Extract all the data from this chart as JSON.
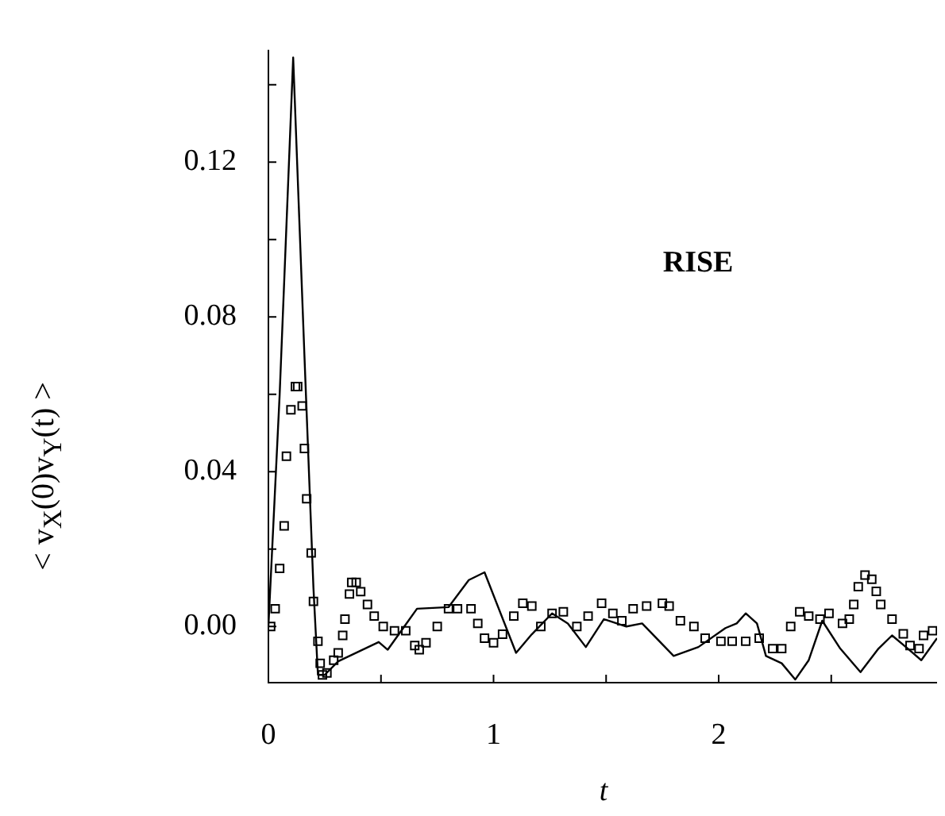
{
  "chart_data": {
    "type": "line",
    "xlabel": "t",
    "ylabel": "< v$_{X}$(0)v$_{Y}$(t) >",
    "annotations": [
      "RISE"
    ],
    "xlim": [
      0,
      2.97
    ],
    "ylim": [
      -0.0145,
      0.149
    ],
    "xticks": [
      0,
      {
        "value": 0.5,
        "label": null
      },
      1,
      {
        "value": 1.5,
        "label": null
      },
      2,
      {
        "value": 2.5,
        "label": null
      }
    ],
    "yticks": [
      {
        "value": 0,
        "label": "0.00"
      },
      {
        "value": 0.02,
        "label": null
      },
      {
        "value": 0.04,
        "label": "0.04"
      },
      {
        "value": 0.06,
        "label": null
      },
      {
        "value": 0.08,
        "label": "0.08"
      },
      {
        "value": 0.1,
        "label": null
      },
      {
        "value": 0.12,
        "label": "0.12"
      },
      {
        "value": 0.14,
        "label": null
      }
    ],
    "series": [
      {
        "type": "line",
        "color": "#000000",
        "marker": "none",
        "line_style": "solid",
        "x": [
          0,
          0.05,
          0.11,
          0.16,
          0.2,
          0.22,
          0.25,
          0.31,
          0.49,
          0.53,
          0.66,
          0.8,
          0.89,
          0.96,
          1.1,
          1.17,
          1.26,
          1.33,
          1.41,
          1.49,
          1.59,
          1.66,
          1.8,
          1.91,
          2.03,
          2.08,
          2.12,
          2.17,
          2.21,
          2.28,
          2.34,
          2.4,
          2.46,
          2.54,
          2.63,
          2.71,
          2.77,
          2.84,
          2.9,
          2.97
        ],
        "values": [
          0,
          0.06,
          0.147,
          0.07,
          0.01,
          -0.0125,
          -0.0125,
          -0.009,
          -0.004,
          -0.006,
          0.0046,
          0.005,
          0.012,
          0.014,
          -0.0068,
          -0.002,
          0.0034,
          0.0008,
          -0.0053,
          0.0019,
          0,
          0.0008,
          -0.0076,
          -0.0053,
          -0.0004,
          0.0008,
          0.0034,
          0.0008,
          -0.0076,
          -0.0095,
          -0.0137,
          -0.0087,
          0.0015,
          -0.0057,
          -0.0118,
          -0.0057,
          -0.0023,
          -0.0057,
          -0.0087,
          -0.003
        ]
      },
      {
        "type": "scatter",
        "color": "#000000",
        "marker": "square",
        "x": [
          0.01,
          0.03,
          0.05,
          0.07,
          0.08,
          0.1,
          0.12,
          0.13,
          0.15,
          0.16,
          0.17,
          0.19,
          0.2,
          0.22,
          0.23,
          0.24,
          0.26,
          0.29,
          0.31,
          0.33,
          0.34,
          0.36,
          0.37,
          0.39,
          0.41,
          0.44,
          0.47,
          0.51,
          0.56,
          0.61,
          0.65,
          0.67,
          0.7,
          0.75,
          0.8,
          0.84,
          0.9,
          0.93,
          0.96,
          1.0,
          1.04,
          1.09,
          1.13,
          1.17,
          1.21,
          1.26,
          1.31,
          1.37,
          1.42,
          1.48,
          1.53,
          1.57,
          1.62,
          1.68,
          1.75,
          1.78,
          1.83,
          1.89,
          1.94,
          2.01,
          2.06,
          2.12,
          2.18,
          2.24,
          2.28,
          2.32,
          2.36,
          2.4,
          2.45,
          2.49,
          2.55,
          2.58,
          2.6,
          2.62,
          2.65,
          2.68,
          2.7,
          2.72,
          2.77,
          2.82,
          2.85,
          2.89,
          2.91,
          2.95
        ],
        "values": [
          0,
          0.0046,
          0.015,
          0.026,
          0.044,
          0.056,
          0.062,
          0.062,
          0.057,
          0.046,
          0.033,
          0.019,
          0.0065,
          -0.0038,
          -0.0095,
          -0.0125,
          -0.012,
          -0.0087,
          -0.0068,
          -0.0023,
          0.0019,
          0.0084,
          0.0114,
          0.0114,
          0.009,
          0.0057,
          0.0027,
          0,
          -0.0011,
          -0.0011,
          -0.0049,
          -0.006,
          -0.0042,
          0,
          0.0046,
          0.0046,
          0.0046,
          0.0008,
          -0.003,
          -0.0042,
          -0.002,
          0.0027,
          0.006,
          0.0053,
          0,
          0.0034,
          0.0038,
          0,
          0.0027,
          0.006,
          0.0034,
          0.0015,
          0.0046,
          0.0053,
          0.006,
          0.0053,
          0.0015,
          0,
          -0.003,
          -0.0038,
          -0.0038,
          -0.0038,
          -0.003,
          -0.0057,
          -0.0057,
          0,
          0.0038,
          0.0027,
          0.0019,
          0.0034,
          0.0008,
          0.0019,
          0.0057,
          0.0103,
          0.0133,
          0.0122,
          0.0091,
          0.0057,
          0.0019,
          -0.0019,
          -0.0049,
          -0.0057,
          -0.0023,
          -0.0011
        ]
      }
    ]
  }
}
